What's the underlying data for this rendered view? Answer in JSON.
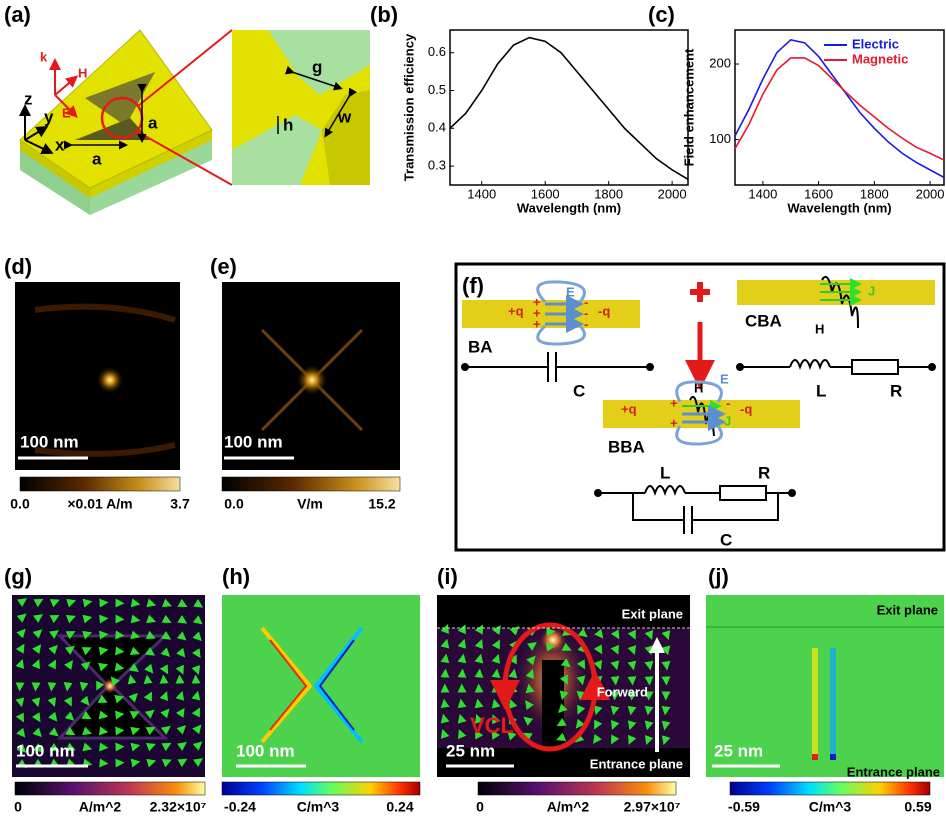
{
  "panel_labels": [
    "(a)",
    "(b)",
    "(c)",
    "(d)",
    "(e)",
    "(f)",
    "(g)",
    "(h)",
    "(i)",
    "(j)"
  ],
  "panel_a": {
    "axes": [
      "z",
      "y",
      "x"
    ],
    "vectors": [
      "k",
      "H",
      "E"
    ],
    "dims": [
      "a",
      "a",
      "g",
      "h",
      "w"
    ]
  },
  "chart_data": [
    {
      "type": "line",
      "x_label": "Wavelength (nm)",
      "y_label": "Transmission efficiency",
      "x": [
        1300,
        1350,
        1400,
        1450,
        1500,
        1550,
        1600,
        1650,
        1700,
        1750,
        1800,
        1850,
        1900,
        1950,
        2000,
        2050
      ],
      "values": [
        0.4,
        0.44,
        0.5,
        0.57,
        0.62,
        0.64,
        0.63,
        0.6,
        0.55,
        0.5,
        0.45,
        0.4,
        0.36,
        0.32,
        0.29,
        0.265
      ],
      "color": "#000000",
      "xlim": [
        1300,
        2050
      ],
      "ylim": [
        0.25,
        0.66
      ],
      "xticks": [
        1400,
        1600,
        1800,
        2000
      ],
      "yticks": [
        0.3,
        0.4,
        0.5,
        0.6
      ]
    },
    {
      "type": "line",
      "x_label": "Wavelength (nm)",
      "y_label": "Field enhancement",
      "x": [
        1300,
        1350,
        1400,
        1450,
        1500,
        1550,
        1600,
        1650,
        1700,
        1750,
        1800,
        1850,
        1900,
        1950,
        2000,
        2050
      ],
      "series": [
        {
          "name": "Electric",
          "color": "#1a1ae6",
          "values": [
            105,
            140,
            180,
            215,
            232,
            228,
            210,
            185,
            160,
            135,
            115,
            97,
            82,
            70,
            60,
            50
          ]
        },
        {
          "name": "Magnetic",
          "color": "#e61a2e",
          "values": [
            88,
            120,
            160,
            192,
            208,
            208,
            198,
            180,
            162,
            145,
            130,
            115,
            102,
            90,
            82,
            73
          ]
        }
      ],
      "xlim": [
        1300,
        2050
      ],
      "ylim": [
        40,
        245
      ],
      "xticks": [
        1400,
        1600,
        1800,
        2000
      ],
      "yticks": [
        100,
        200
      ],
      "legend": "upper right"
    }
  ],
  "panel_d": {
    "scale_bar": "100 nm",
    "colorbar": [
      "0.0",
      "×0.01 A/m",
      "3.7"
    ]
  },
  "panel_e": {
    "scale_bar": "100 nm",
    "colorbar": [
      "0.0",
      "V/m",
      "15.2"
    ]
  },
  "panel_f": {
    "texts": [
      "E",
      "+q",
      "+",
      "+",
      "+",
      "-",
      "-",
      "-",
      "-q",
      "BA",
      "J",
      "CBA",
      "H",
      "C",
      "L",
      "R",
      "H",
      "E",
      "+q",
      "+",
      "+",
      "-",
      "-q",
      "J",
      "BBA",
      "L",
      "R",
      "C"
    ]
  },
  "panel_g": {
    "scale_bar": "100 nm",
    "colorbar": [
      "0",
      "A/m^2",
      "2.32×10⁷"
    ]
  },
  "panel_h": {
    "scale_bar": "100 nm",
    "colorbar": [
      "-0.24",
      "C/m^3",
      "0.24"
    ]
  },
  "panel_i": {
    "scale_bar": "25 nm",
    "colorbar": [
      "0",
      "A/m^2",
      "2.97×10⁷"
    ],
    "texts": [
      "Exit plane",
      "Forward",
      "VCL",
      "Entrance plane"
    ]
  },
  "panel_j": {
    "scale_bar": "25 nm",
    "colorbar": [
      "-0.59",
      "C/m^3",
      "0.59"
    ],
    "texts": [
      "Exit plane",
      "Entrance plane"
    ]
  }
}
